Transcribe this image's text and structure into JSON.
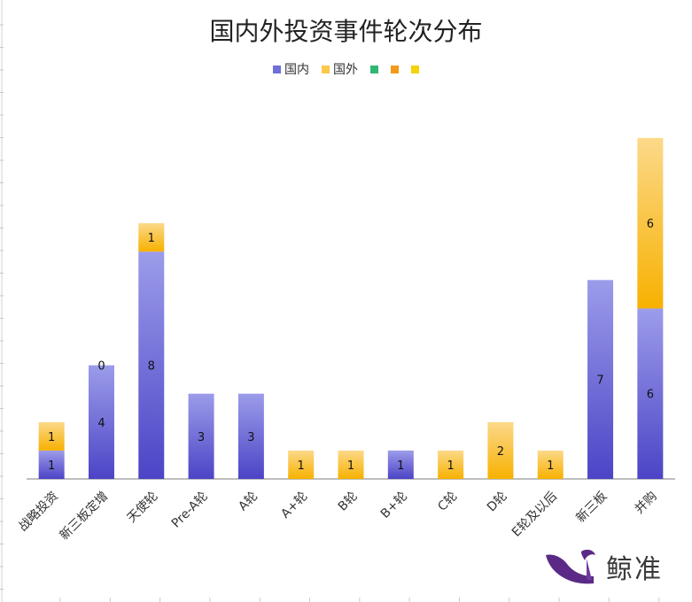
{
  "chart_data": {
    "type": "bar",
    "stacked": true,
    "title": "国内外投资事件轮次分布",
    "xlabel": "",
    "ylabel": "",
    "ylim": [
      0,
      12
    ],
    "categories": [
      "战略投资",
      "新三板定增",
      "天使轮",
      "Pre-A轮",
      "A轮",
      "A+轮",
      "B轮",
      "B+轮",
      "C轮",
      "D轮",
      "E轮及以后",
      "新三板",
      "并购"
    ],
    "series": [
      {
        "name": "国内",
        "color": "#6f6fd8",
        "values": [
          1,
          4,
          8,
          3,
          3,
          0,
          0,
          1,
          0,
          0,
          0,
          7,
          6
        ],
        "labels": [
          "1",
          "4",
          "8",
          "3",
          "3",
          "",
          "",
          "1",
          "",
          "",
          "",
          "7",
          "6"
        ]
      },
      {
        "name": "国外",
        "color": "#f9b820",
        "values": [
          1,
          0,
          1,
          0,
          0,
          1,
          1,
          0,
          1,
          2,
          1,
          0,
          6
        ],
        "labels": [
          "1",
          "0",
          "1",
          "",
          "",
          "1",
          "1",
          "",
          "1",
          "2",
          "1",
          "",
          "6"
        ]
      }
    ],
    "legend": {
      "position": "top",
      "entries": [
        {
          "name": "国内",
          "color": "#6f6fd8"
        },
        {
          "name": "国外",
          "color": "#fcc84a"
        },
        {
          "name": "",
          "color": "#2eb872"
        },
        {
          "name": "",
          "color": "#f39a1a"
        },
        {
          "name": "",
          "color": "#f5d20a"
        }
      ]
    },
    "grid": false
  },
  "watermark": {
    "text": "鲸准",
    "icon": "whale-logo-icon",
    "color": "#5b2a86"
  }
}
